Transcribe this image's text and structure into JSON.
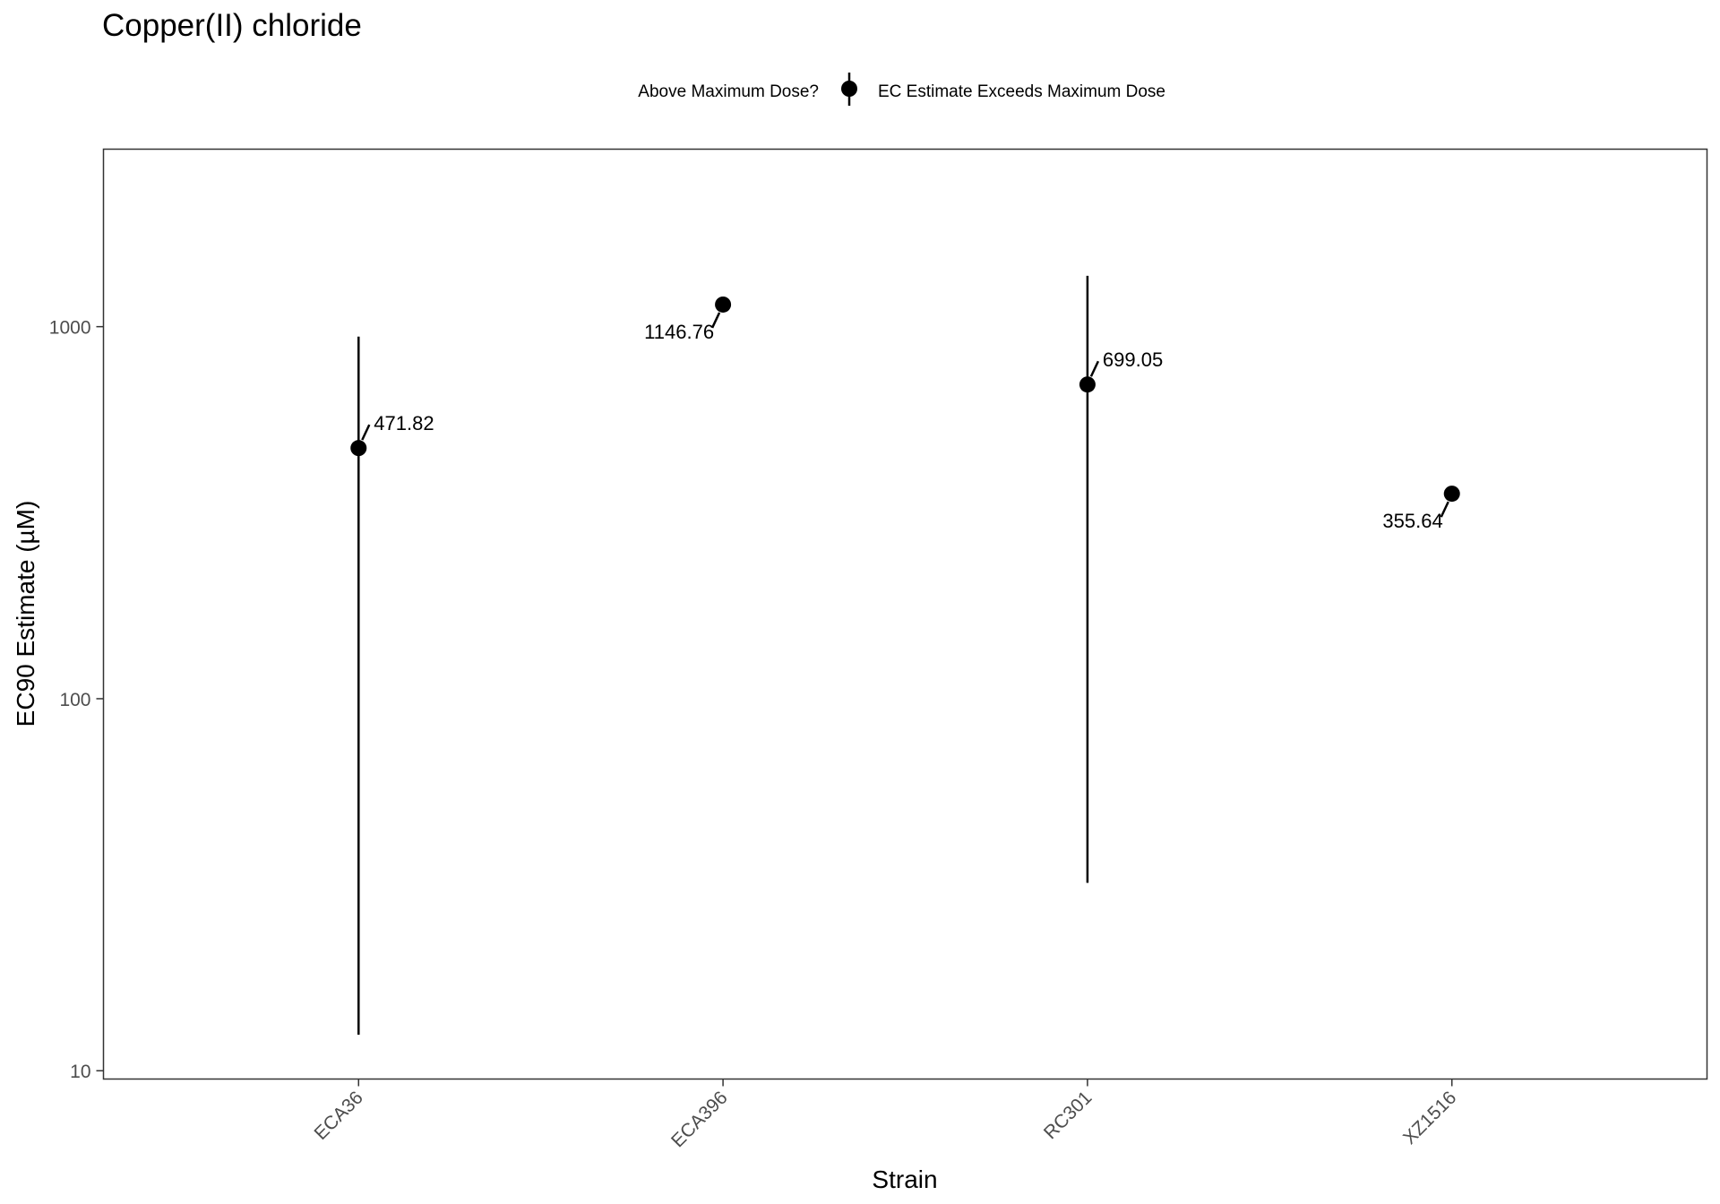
{
  "chart_data": {
    "type": "scatter",
    "title": "Copper(II) chloride",
    "xlabel": "Strain",
    "ylabel": "EC90 Estimate (µM)",
    "y_scale": "log10",
    "ylim": [
      9.5,
      3000
    ],
    "y_ticks": [
      10,
      100,
      1000
    ],
    "y_tick_labels": [
      "10",
      "100",
      "1000"
    ],
    "categories": [
      "ECA36",
      "ECA396",
      "RC301",
      "XZ1516"
    ],
    "grid": false,
    "legend": {
      "position": "top",
      "title": "Above Maximum Dose?",
      "entries": [
        "EC Estimate Exceeds Maximum Dose"
      ]
    },
    "series": [
      {
        "name": "EC Estimate Exceeds Maximum Dose",
        "color": "#000000",
        "points": [
          {
            "strain": "ECA36",
            "value": 471.82,
            "label": "471.82",
            "lower": 12.5,
            "upper": 940,
            "label_side": "right"
          },
          {
            "strain": "ECA396",
            "value": 1146.76,
            "label": "1146.76",
            "lower": null,
            "upper": null,
            "label_side": "left"
          },
          {
            "strain": "RC301",
            "value": 699.05,
            "label": "699.05",
            "lower": 32,
            "upper": 1370,
            "label_side": "right"
          },
          {
            "strain": "XZ1516",
            "value": 355.64,
            "label": "355.64",
            "lower": null,
            "upper": null,
            "label_side": "left"
          }
        ]
      }
    ]
  }
}
